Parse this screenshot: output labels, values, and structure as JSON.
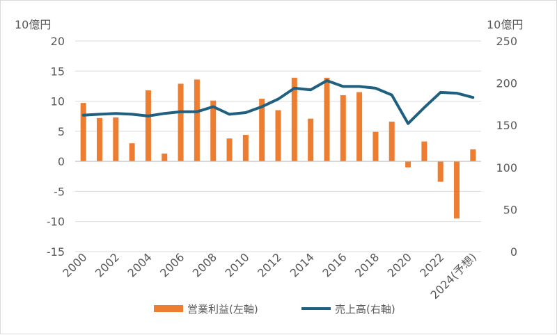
{
  "chart_data": {
    "type": "bar+line",
    "left_axis": {
      "unit_label": "10億円",
      "ylim": [
        -15,
        20
      ],
      "ticks": [
        "20",
        "15",
        "10",
        "5",
        "0",
        "-5",
        "-10",
        "-15"
      ],
      "tick_values": [
        20,
        15,
        10,
        5,
        0,
        -5,
        -10,
        -15
      ],
      "negative_tick_color": "#ff0000"
    },
    "right_axis": {
      "unit_label": "10億円",
      "ylim": [
        0,
        250
      ],
      "ticks": [
        "250",
        "200",
        "150",
        "100",
        "50",
        "0"
      ],
      "tick_values": [
        250,
        200,
        150,
        100,
        50,
        0
      ]
    },
    "categories": [
      "2000",
      "2001",
      "2002",
      "2003",
      "2004",
      "2005",
      "2006",
      "2007",
      "2008",
      "2009",
      "2010",
      "2011",
      "2012",
      "2013",
      "2014",
      "2015",
      "2016",
      "2017",
      "2018",
      "2019",
      "2020",
      "2021",
      "2022",
      "2023",
      "2024(予想)"
    ],
    "x_tick_labels": [
      "2000",
      "",
      "2002",
      "",
      "2004",
      "",
      "2006",
      "",
      "2008",
      "",
      "2010",
      "",
      "2012",
      "",
      "2014",
      "",
      "2016",
      "",
      "2018",
      "",
      "2020",
      "",
      "2022",
      "",
      "2024(予想)"
    ],
    "series": [
      {
        "name": "営業利益(左軸)",
        "type": "bar",
        "axis": "left",
        "color": "#ed7d31",
        "values": [
          9.7,
          7.2,
          7.3,
          3.0,
          11.8,
          1.3,
          12.9,
          13.6,
          10.1,
          3.8,
          4.4,
          10.4,
          8.5,
          13.9,
          7.1,
          13.9,
          11.0,
          11.5,
          4.9,
          6.6,
          -1.0,
          3.3,
          -3.4,
          -9.5,
          2.0
        ]
      },
      {
        "name": "売上高(右軸)",
        "type": "line",
        "axis": "right",
        "color": "#1f5f7f",
        "values": [
          162,
          163,
          164,
          163,
          161,
          164,
          166,
          166,
          172,
          163,
          165,
          172,
          181,
          194,
          192,
          203,
          196,
          196,
          194,
          186,
          152,
          171,
          189,
          188,
          183
        ]
      }
    ],
    "grid": true,
    "legend": "bottom"
  }
}
